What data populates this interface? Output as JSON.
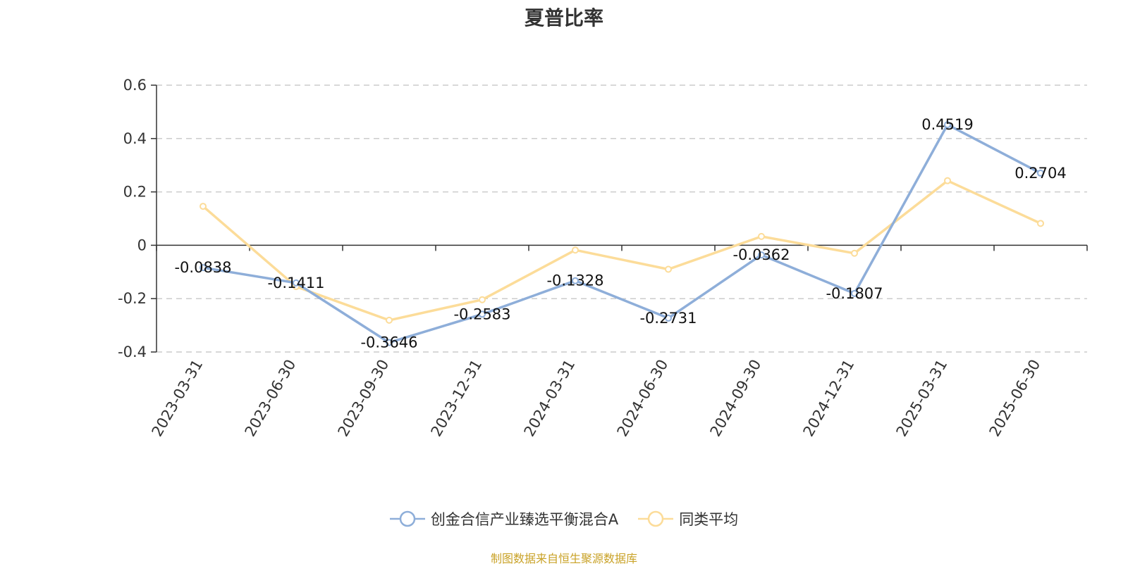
{
  "chart_data": {
    "type": "line",
    "title": "夏普比率",
    "categories": [
      "2023-03-31",
      "2023-06-30",
      "2023-09-30",
      "2023-12-31",
      "2024-03-31",
      "2024-06-30",
      "2024-09-30",
      "2024-12-31",
      "2025-03-31",
      "2025-06-30"
    ],
    "series": [
      {
        "name": "创金合信产业臻选平衡混合A",
        "color": "#8eaed9",
        "values": [
          -0.0838,
          -0.1411,
          -0.3646,
          -0.2583,
          -0.1328,
          -0.2731,
          -0.0362,
          -0.1807,
          0.4519,
          0.2704
        ],
        "labels": [
          "-0.0838",
          "-0.1411",
          "-0.3646",
          "-0.2583",
          "-0.1328",
          "-0.2731",
          "-0.0362",
          "-0.1807",
          "0.4519",
          "0.2704"
        ]
      },
      {
        "name": "同类平均",
        "color": "#fcdc99",
        "values": [
          0.146,
          -0.155,
          -0.281,
          -0.204,
          -0.018,
          -0.09,
          0.033,
          -0.03,
          0.242,
          0.082
        ]
      }
    ],
    "ylim": [
      -0.4,
      0.6
    ],
    "yticks": [
      0.6,
      0.4,
      0.2,
      0,
      -0.2,
      -0.4
    ],
    "ytick_labels": [
      "0.6",
      "0.4",
      "0.2",
      "0",
      "-0.2",
      "-0.4"
    ],
    "grid": true,
    "legend_position": "bottom"
  },
  "source_note": "制图数据来自恒生聚源数据库"
}
